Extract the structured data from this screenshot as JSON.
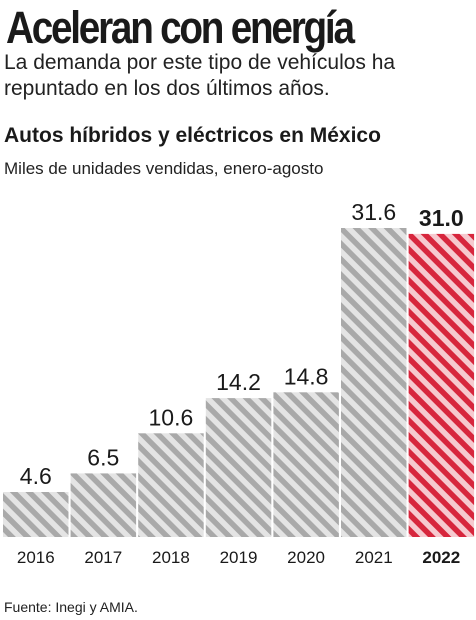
{
  "headline": "Aceleran con energía",
  "dek": "La demanda por este tipo de vehículos ha repuntado en los dos últimos años.",
  "source": "Fuente: Inegi y AMIA.",
  "colors": {
    "bar_stripe": "#a9a9a9",
    "bar_fill": "#e4e4e4",
    "highlight_stripe": "#d7263d",
    "highlight_fill": "#f6c9cf",
    "text": "#1a1a1a"
  },
  "chart_data": {
    "type": "bar",
    "title": "Autos híbridos y eléctricos en México",
    "subtitle": "Miles de unidades vendidas, enero-agosto",
    "categories": [
      "2016",
      "2017",
      "2018",
      "2019",
      "2020",
      "2021",
      "2022"
    ],
    "values": [
      4.6,
      6.5,
      10.6,
      14.2,
      14.8,
      31.6,
      31.0
    ],
    "value_labels": [
      "4.6",
      "6.5",
      "10.6",
      "14.2",
      "14.8",
      "31.6",
      "31.0"
    ],
    "highlight_category": "2022",
    "ylim": [
      0,
      31.6
    ],
    "grid": false,
    "legend": "none"
  }
}
